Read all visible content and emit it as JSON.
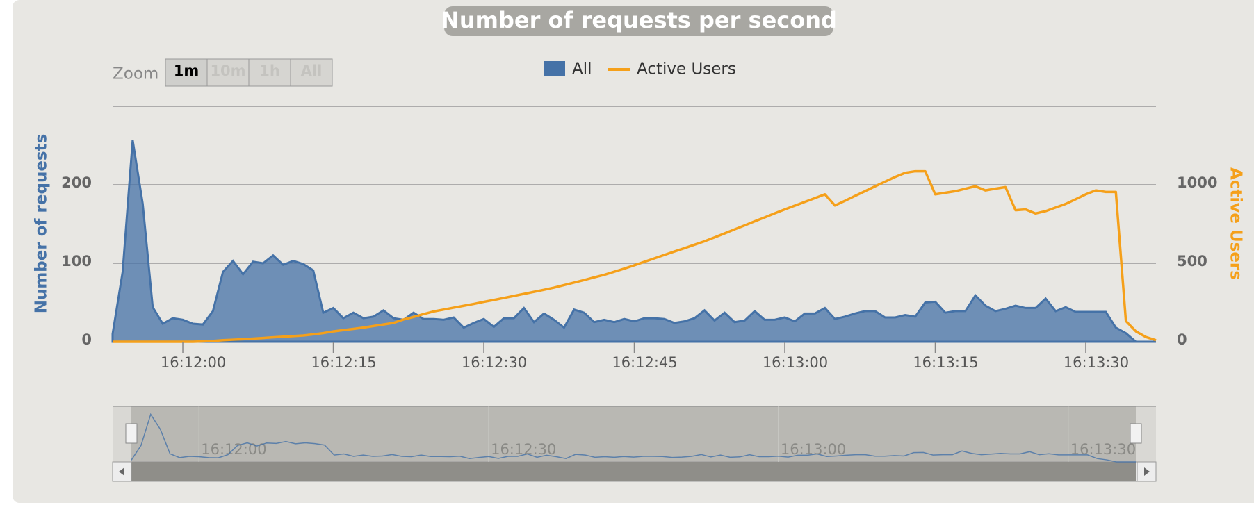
{
  "chart_data": {
    "type": "area",
    "title": "Number of requests per second",
    "zoom": {
      "label": "Zoom",
      "buttons": [
        "1m",
        "10m",
        "1h",
        "All"
      ]
    },
    "y_label": "Number of requests",
    "y2_label": "Active Users",
    "x": [
      "16:11:53",
      "16:11:54",
      "16:11:55",
      "16:11:56",
      "16:11:57",
      "16:11:58",
      "16:11:59",
      "16:12:00",
      "16:12:01",
      "16:12:02",
      "16:12:03",
      "16:12:04",
      "16:12:05",
      "16:12:06",
      "16:12:07",
      "16:12:08",
      "16:12:09",
      "16:12:10",
      "16:12:11",
      "16:12:12",
      "16:12:13",
      "16:12:14",
      "16:12:15",
      "16:12:16",
      "16:12:17",
      "16:12:18",
      "16:12:19",
      "16:12:20",
      "16:12:21",
      "16:12:22",
      "16:12:23",
      "16:12:24",
      "16:12:25",
      "16:12:26",
      "16:12:27",
      "16:12:28",
      "16:12:29",
      "16:12:30",
      "16:12:31",
      "16:12:32",
      "16:12:33",
      "16:12:34",
      "16:12:35",
      "16:12:36",
      "16:12:37",
      "16:12:38",
      "16:12:39",
      "16:12:40",
      "16:12:41",
      "16:12:42",
      "16:12:43",
      "16:12:44",
      "16:12:45",
      "16:12:46",
      "16:12:47",
      "16:12:48",
      "16:12:49",
      "16:12:50",
      "16:12:51",
      "16:12:52",
      "16:12:53",
      "16:12:54",
      "16:12:55",
      "16:12:56",
      "16:12:57",
      "16:12:58",
      "16:12:59",
      "16:13:00",
      "16:13:01",
      "16:13:02",
      "16:13:03",
      "16:13:04",
      "16:13:05",
      "16:13:06",
      "16:13:07",
      "16:13:08",
      "16:13:09",
      "16:13:10",
      "16:13:11",
      "16:13:12",
      "16:13:13",
      "16:13:14",
      "16:13:15",
      "16:13:16",
      "16:13:17",
      "16:13:18",
      "16:13:19",
      "16:13:20",
      "16:13:21",
      "16:13:22",
      "16:13:23",
      "16:13:24",
      "16:13:25",
      "16:13:26",
      "16:13:27",
      "16:13:28",
      "16:13:29",
      "16:13:30",
      "16:13:31",
      "16:13:32",
      "16:13:33",
      "16:13:34",
      "16:13:35",
      "16:13:36",
      "16:13:37"
    ],
    "series": [
      {
        "name": "All",
        "type": "area",
        "color": "#4572a7",
        "values": [
          10,
          89,
          257,
          176,
          44,
          23,
          30,
          28,
          23,
          22,
          39,
          89,
          103,
          86,
          102,
          100,
          110,
          98,
          103,
          99,
          91,
          37,
          43,
          30,
          37,
          30,
          32,
          40,
          30,
          28,
          37,
          29,
          29,
          28,
          31,
          18,
          24,
          29,
          19,
          30,
          30,
          43,
          25,
          36,
          28,
          18,
          41,
          37,
          25,
          28,
          25,
          29,
          26,
          30,
          30,
          29,
          24,
          26,
          30,
          40,
          27,
          37,
          25,
          27,
          39,
          28,
          28,
          31,
          26,
          36,
          36,
          43,
          29,
          32,
          36,
          39,
          39,
          31,
          31,
          34,
          32,
          50,
          51,
          37,
          39,
          39,
          59,
          46,
          39,
          42,
          46,
          43,
          43,
          55,
          39,
          44,
          38,
          38,
          38,
          38,
          18,
          11,
          0,
          0,
          0
        ]
      },
      {
        "name": "Active Users",
        "type": "line",
        "axis": "y2",
        "color": "#f5a01a",
        "values": [
          0,
          0,
          0,
          0,
          0,
          0,
          0,
          0,
          0,
          2,
          5,
          10,
          13,
          16,
          20,
          24,
          28,
          32,
          36,
          40,
          47,
          55,
          66,
          74,
          82,
          90,
          100,
          110,
          120,
          142,
          158,
          176,
          193,
          205,
          217,
          229,
          241,
          254,
          266,
          279,
          292,
          305,
          318,
          331,
          345,
          361,
          377,
          393,
          410,
          426,
          446,
          466,
          487,
          509,
          531,
          553,
          575,
          596,
          618,
          640,
          665,
          690,
          716,
          741,
          767,
          792,
          818,
          843,
          867,
          891,
          915,
          939,
          868,
          898,
          929,
          959,
          990,
          1020,
          1050,
          1076,
          1086,
          1086,
          939,
          949,
          959,
          975,
          990,
          964,
          975,
          985,
          838,
          843,
          817,
          832,
          855,
          878,
          908,
          939,
          964,
          954,
          954,
          132,
          66,
          30,
          10
        ]
      }
    ],
    "xlim": [
      "16:11:53",
      "16:13:37"
    ],
    "xticks": [
      "16:12:00",
      "16:12:15",
      "16:12:30",
      "16:12:45",
      "16:13:00",
      "16:13:15",
      "16:13:30"
    ],
    "ylim": [
      0,
      300
    ],
    "yticks": [
      0,
      100,
      200
    ],
    "y2lim": [
      0,
      1500
    ],
    "y2ticks": [
      0,
      500,
      1000
    ],
    "grid": true,
    "legend": "top",
    "navigator": {
      "xticks": [
        "16:12:00",
        "16:12:30",
        "16:13:00",
        "16:13:30"
      ]
    }
  }
}
